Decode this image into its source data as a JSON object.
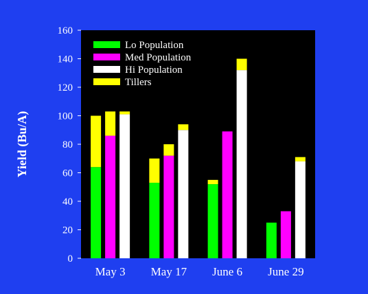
{
  "page": {
    "background": "#1f3ff0"
  },
  "chart_data": {
    "type": "bar",
    "stacked": true,
    "title": "",
    "xlabel": "",
    "ylabel": "Yield (Bu/A)",
    "ylim": [
      0,
      160
    ],
    "yticks": [
      0,
      20,
      40,
      60,
      80,
      100,
      120,
      140,
      160
    ],
    "grid": false,
    "legend_position": "top-left",
    "plot_background": "#000000",
    "text_color": "#ffffff",
    "categories": [
      "May 3",
      "May 17",
      "June 6",
      "June 29"
    ],
    "groups": [
      {
        "name": "Lo Population",
        "color": "#00ff00",
        "values": [
          64,
          53,
          52,
          25
        ]
      },
      {
        "name": "Med Population",
        "color": "#ff00ff",
        "values": [
          86,
          72,
          89,
          33
        ]
      },
      {
        "name": "Hi Population",
        "color": "#ffffff",
        "values": [
          101,
          90,
          132,
          68
        ]
      }
    ],
    "stack_component": {
      "name": "Tillers",
      "color": "#ffff00",
      "values": [
        [
          36,
          17,
          3,
          0
        ],
        [
          17,
          8,
          0,
          0
        ],
        [
          2,
          4,
          8,
          3
        ]
      ]
    }
  }
}
